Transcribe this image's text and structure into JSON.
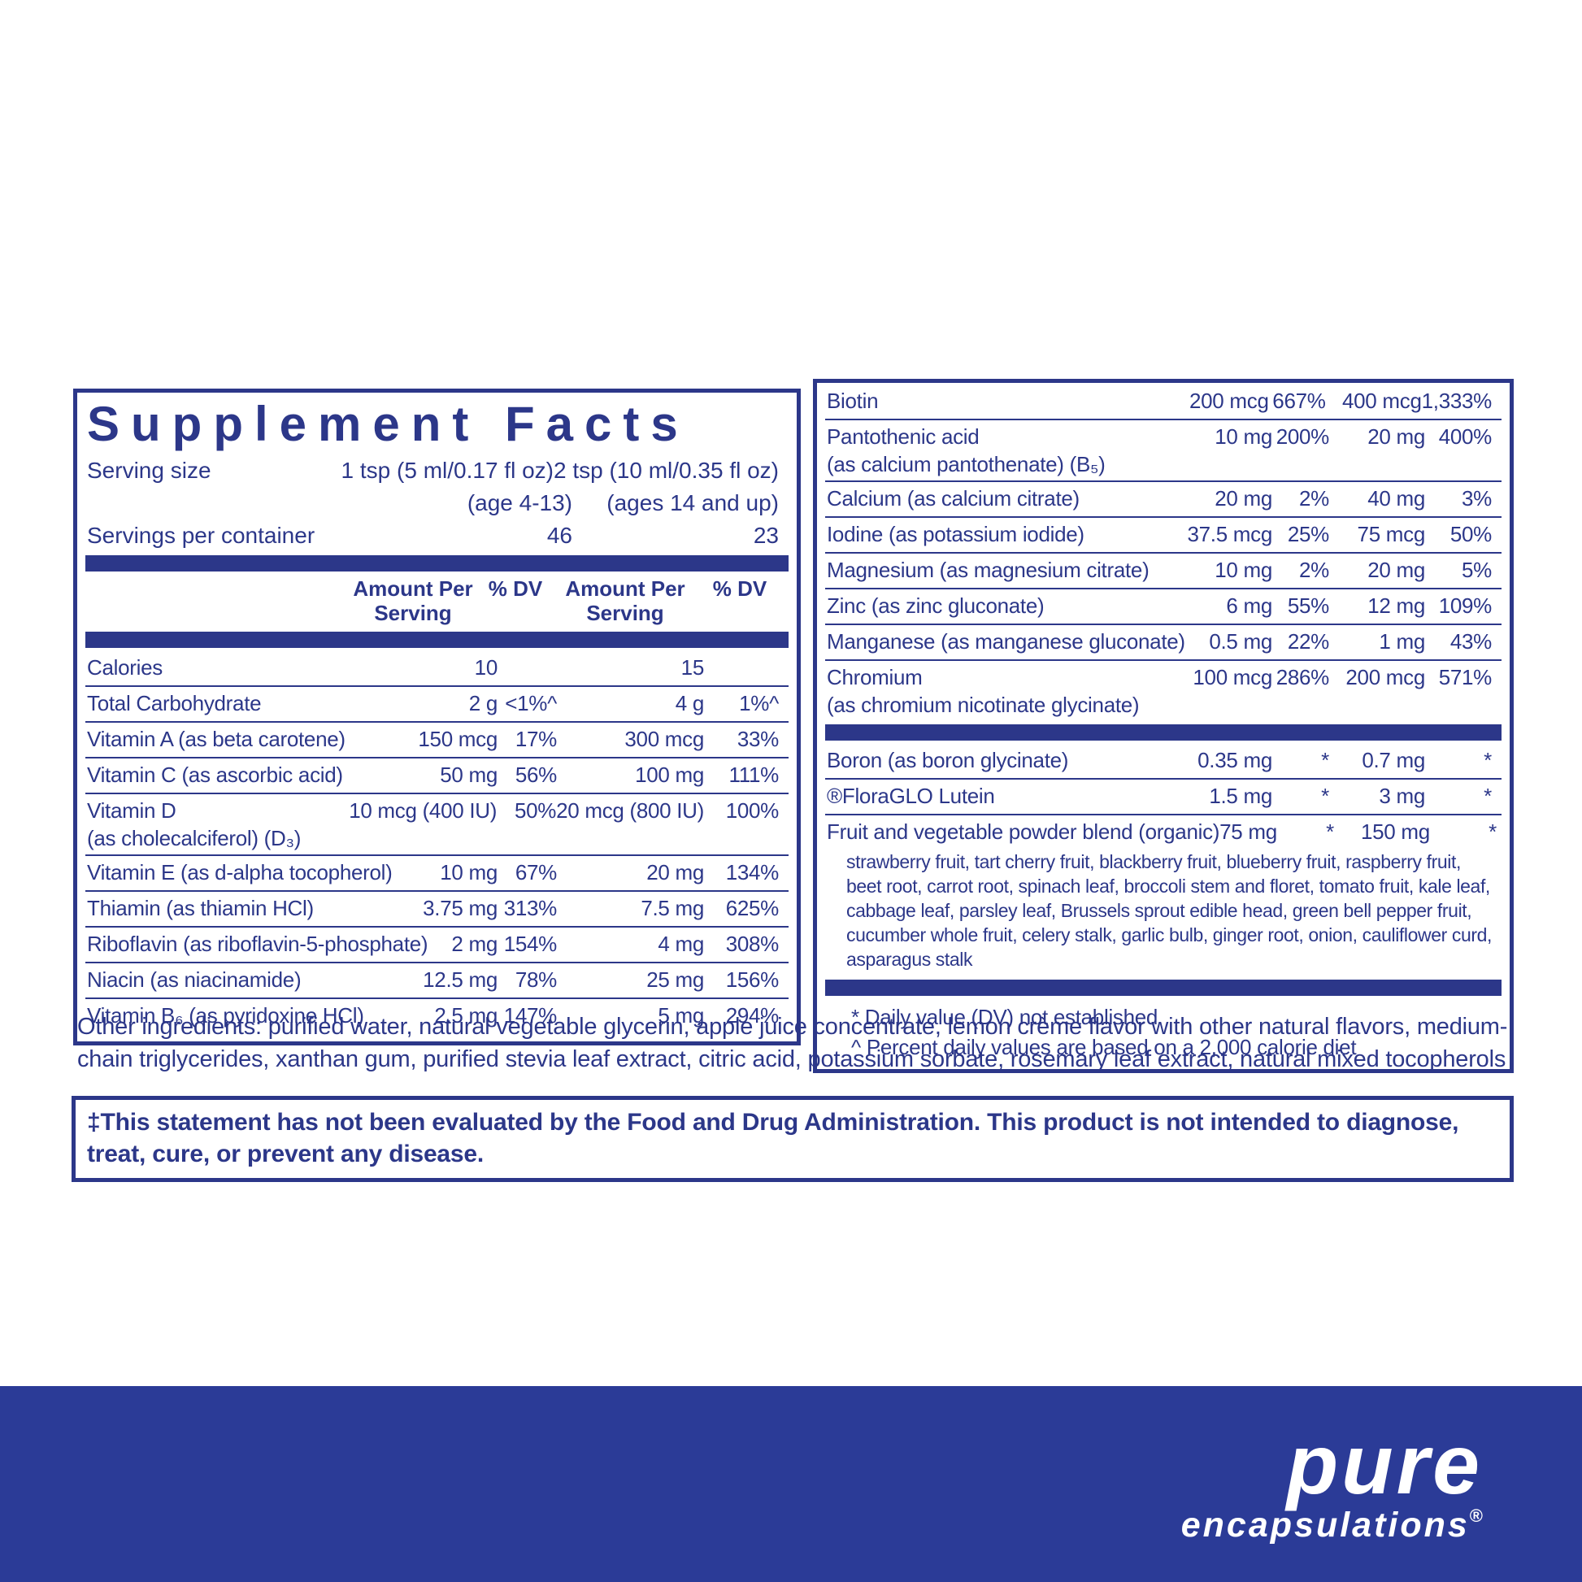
{
  "colors": {
    "navy": "#2c3789",
    "band_blue": "#2b3b97",
    "background": "#ffffff",
    "logo_text": "#ffffff"
  },
  "panel": {
    "title": "Supplement Facts",
    "serving_size_label": "Serving size",
    "serving_1": "1 tsp (5 ml/0.17 fl oz)",
    "serving_1_age": "(age 4-13)",
    "serving_2": "2 tsp (10 ml/0.35 fl oz)",
    "serving_2_age": "(ages 14 and up)",
    "servings_per_container_label": "Servings per container",
    "servings_1": "46",
    "servings_2": "23",
    "header_amount": "Amount Per Serving",
    "header_dv": "% DV"
  },
  "left_rows": [
    {
      "name": "Calories",
      "a1": "10",
      "d1": "",
      "a2": "15",
      "d2": ""
    },
    {
      "name": "Total Carbohydrate",
      "a1": "2 g",
      "d1": "<1%^",
      "a2": "4 g",
      "d2": "1%^"
    },
    {
      "name": "Vitamin A (as beta carotene)",
      "a1": "150 mcg",
      "d1": "17%",
      "a2": "300 mcg",
      "d2": "33%"
    },
    {
      "name": "Vitamin C (as ascorbic acid)",
      "a1": "50 mg",
      "d1": "56%",
      "a2": "100 mg",
      "d2": "111%"
    },
    {
      "name": "Vitamin D\n(as cholecalciferol) (D₃)",
      "a1": "10 mcg (400 IU)",
      "d1": "50%",
      "a2": "20 mcg (800 IU)",
      "d2": "100%"
    },
    {
      "name": "Vitamin E (as d-alpha tocopherol)",
      "a1": "10 mg",
      "d1": "67%",
      "a2": "20 mg",
      "d2": "134%"
    },
    {
      "name": "Thiamin (as thiamin HCl)",
      "a1": "3.75 mg",
      "d1": "313%",
      "a2": "7.5 mg",
      "d2": "625%"
    },
    {
      "name": "Riboflavin (as riboflavin-5-phosphate)",
      "a1": "2 mg",
      "d1": "154%",
      "a2": "4 mg",
      "d2": "308%"
    },
    {
      "name": "Niacin (as niacinamide)",
      "a1": "12.5 mg",
      "d1": "78%",
      "a2": "25 mg",
      "d2": "156%"
    },
    {
      "name": "Vitamin B₆ (as pyridoxine HCl)",
      "a1": "2.5 mg",
      "d1": "147%",
      "a2": "5 mg",
      "d2": "294%"
    }
  ],
  "right_rows": [
    {
      "name": "Biotin",
      "a1": "200 mcg",
      "d1": "667%",
      "a2": "400 mcg",
      "d2": "1,333%"
    },
    {
      "name": "Pantothenic acid\n(as calcium pantothenate) (B₅)",
      "a1": "10 mg",
      "d1": "200%",
      "a2": "20 mg",
      "d2": "400%"
    },
    {
      "name": "Calcium (as calcium citrate)",
      "a1": "20 mg",
      "d1": "2%",
      "a2": "40 mg",
      "d2": "3%"
    },
    {
      "name": "Iodine (as potassium iodide)",
      "a1": "37.5 mcg",
      "d1": "25%",
      "a2": "75 mcg",
      "d2": "50%"
    },
    {
      "name": "Magnesium (as magnesium citrate)",
      "a1": "10 mg",
      "d1": "2%",
      "a2": "20 mg",
      "d2": "5%"
    },
    {
      "name": "Zinc (as zinc gluconate)",
      "a1": "6 mg",
      "d1": "55%",
      "a2": "12 mg",
      "d2": "109%"
    },
    {
      "name": "Manganese (as manganese gluconate)",
      "a1": "0.5 mg",
      "d1": "22%",
      "a2": "1 mg",
      "d2": "43%"
    },
    {
      "name": "Chromium\n(as chromium nicotinate glycinate)",
      "a1": "100 mcg",
      "d1": "286%",
      "a2": "200 mcg",
      "d2": "571%"
    }
  ],
  "right_extra": [
    {
      "name": "Boron (as boron glycinate)",
      "a1": "0.35 mg",
      "d1": "*",
      "a2": "0.7 mg",
      "d2": "*"
    },
    {
      "name": "®FloraGLO Lutein",
      "a1": "1.5 mg",
      "d1": "*",
      "a2": "3 mg",
      "d2": "*"
    },
    {
      "name": "Fruit and vegetable powder blend (organic)",
      "a1": "75 mg",
      "d1": "*",
      "a2": "150 mg",
      "d2": "*"
    }
  ],
  "blend_description": "strawberry fruit, tart cherry fruit, blackberry fruit, blueberry fruit, raspberry fruit, beet root, carrot root, spinach leaf, broccoli stem and floret, tomato fruit, kale leaf, cabbage leaf, parsley leaf, Brussels sprout edible head, green bell pepper fruit, cucumber whole fruit, celery stalk, garlic bulb, ginger root, onion, cauliflower curd, asparagus stalk",
  "footnotes": {
    "dv_not_established": "* Daily value (DV) not established",
    "percent_dv": "^ Percent daily values are based on a 2,000 calorie diet"
  },
  "other_ingredients": "Other ingredients: purified water, natural vegetable glycerin, apple juice concentrate, lemon crème flavor with other natural flavors, medium-chain triglycerides, xanthan gum, purified stevia leaf extract, citric acid, potassium sorbate, rosemary leaf extract, natural mixed tocopherols",
  "disclaimer": "‡This statement has not been evaluated by the Food and Drug Administration. This product is not intended to diagnose, treat, cure, or prevent any disease.",
  "brand": {
    "name": "pure",
    "subname": "encapsulations",
    "registered": "®"
  }
}
